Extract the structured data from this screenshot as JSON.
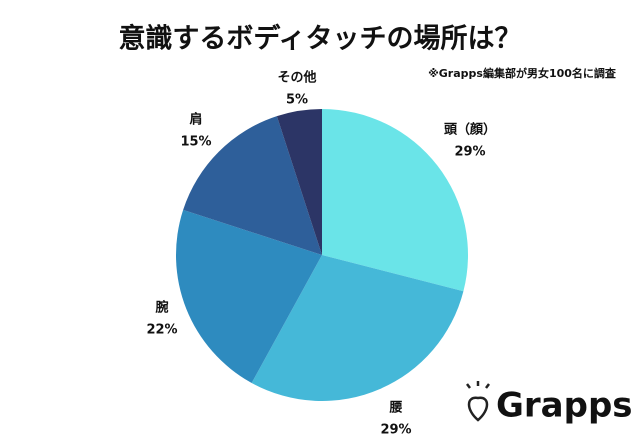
{
  "chart_data": {
    "type": "pie",
    "title": "意識するボディタッチの場所は？",
    "subtitle": "※Grapps編集部が男女100名に調査",
    "categories": [
      "頭（顔）",
      "腰",
      "腕",
      "肩",
      "その他"
    ],
    "values": [
      29,
      29,
      22,
      15,
      5
    ],
    "value_labels": [
      "29%",
      "29%",
      "22%",
      "15%",
      "5%"
    ],
    "colors": [
      "#6ae4e8",
      "#45b8d8",
      "#2e8bbf",
      "#2e5f9a",
      "#2c3566"
    ],
    "logo": "Grapps"
  }
}
